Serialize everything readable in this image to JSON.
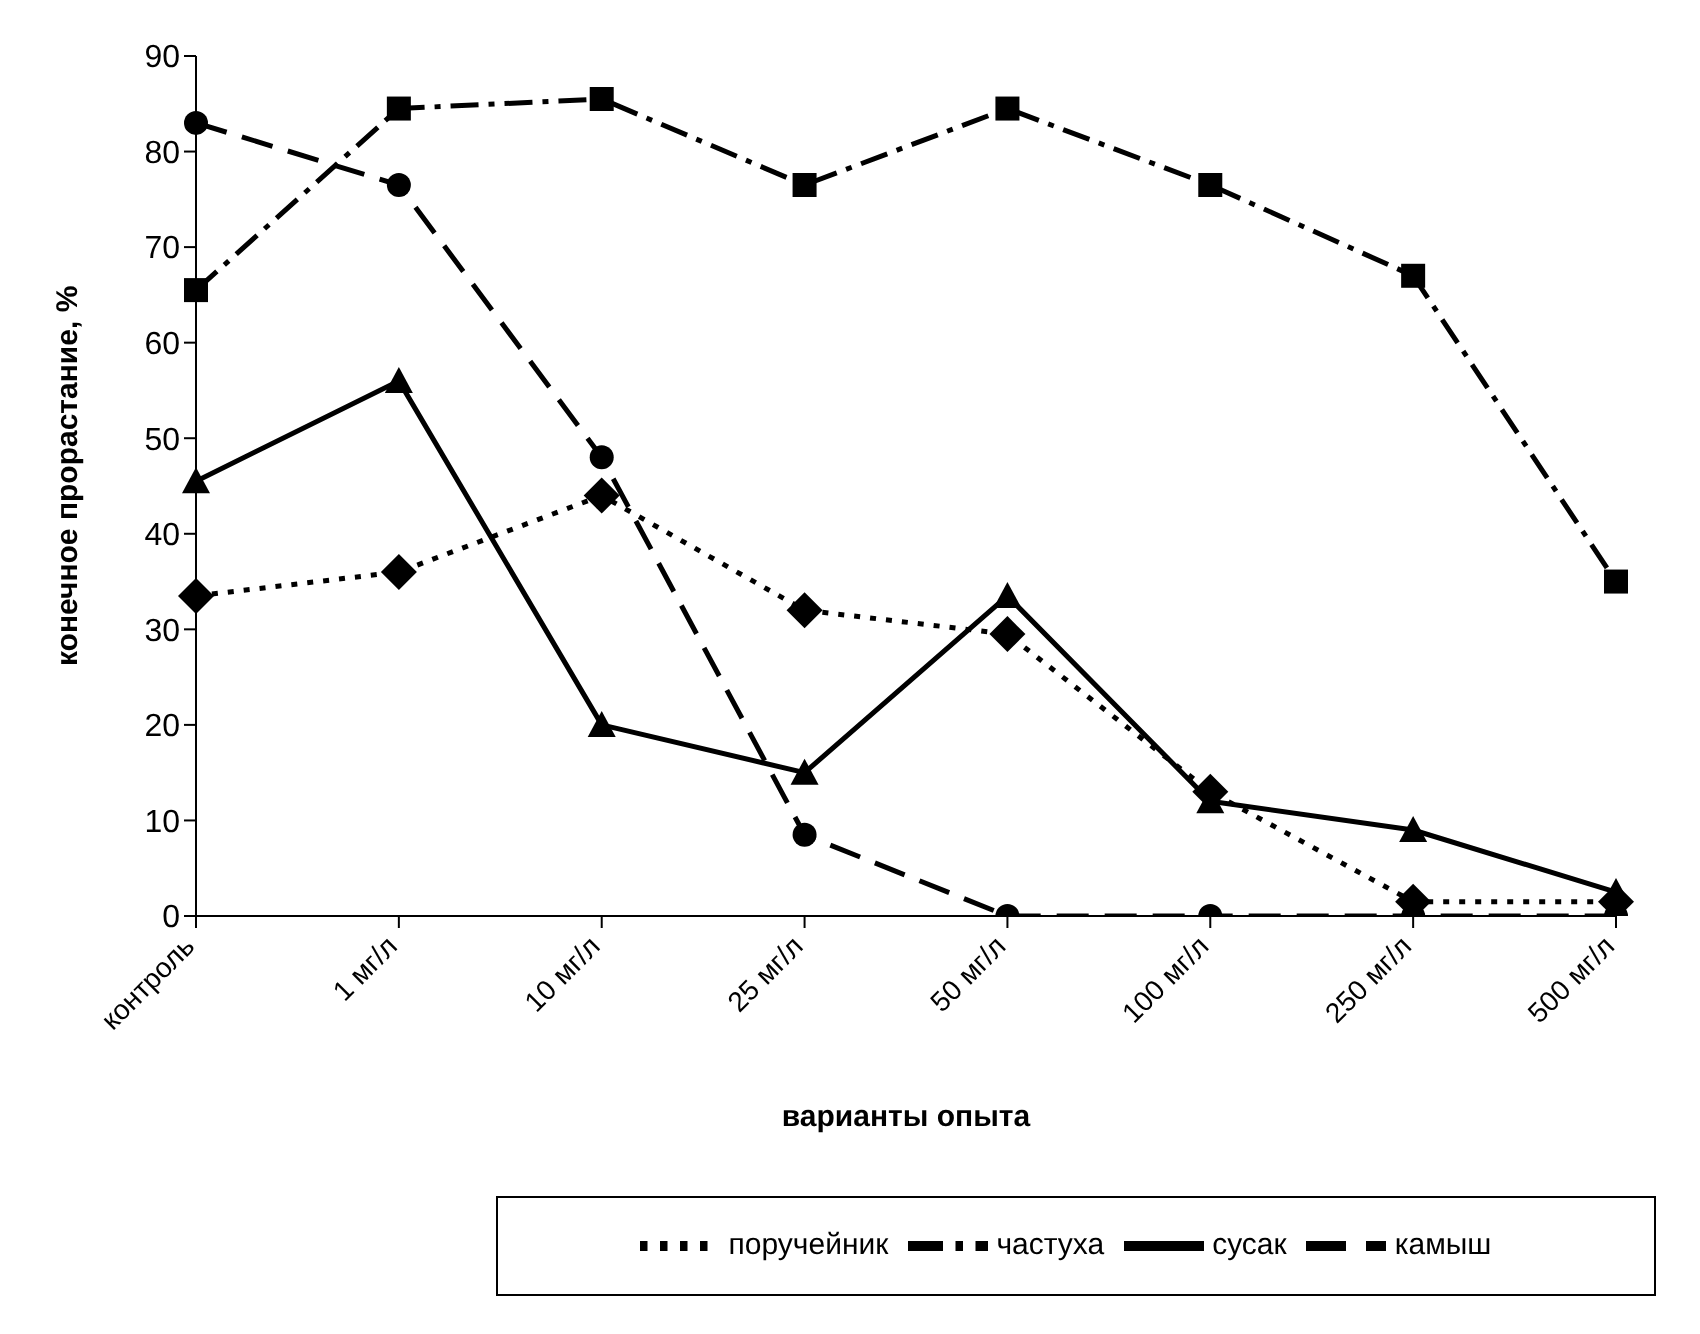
{
  "chart_data": {
    "type": "line",
    "xlabel": "варианты опыта",
    "ylabel": "конечное прорастание, %",
    "categories": [
      "контроль",
      "1 мг/л",
      "10 мг/л",
      "25 мг/л",
      "50 мг/л",
      "100 мг/л",
      "250 мг/л",
      "500 мг/л"
    ],
    "series": [
      {
        "name": "поручейник",
        "color": "#000000",
        "marker": "diamond",
        "line_style": "dotted",
        "values": [
          33.5,
          36,
          44,
          32,
          29.5,
          13,
          1.5,
          1.5
        ]
      },
      {
        "name": "частуха",
        "color": "#000000",
        "marker": "square",
        "line_style": "dashed",
        "values": [
          65.5,
          84.5,
          85.5,
          76.5,
          84.5,
          76.5,
          67,
          35
        ]
      },
      {
        "name": "сусак",
        "color": "#000000",
        "marker": "triangle",
        "line_style": "solid",
        "values": [
          45.5,
          56,
          20,
          15,
          33.5,
          12,
          9,
          2.5
        ]
      },
      {
        "name": "камыш",
        "color": "#000000",
        "marker": "circle",
        "line_style": "dashed",
        "values": [
          83,
          76.5,
          48,
          8.5,
          0,
          0,
          0,
          0
        ]
      }
    ],
    "ylim": [
      0,
      90
    ],
    "yticks": [
      0,
      10,
      20,
      30,
      40,
      50,
      60,
      70,
      80,
      90
    ],
    "grid": false,
    "legend": "bottom"
  }
}
